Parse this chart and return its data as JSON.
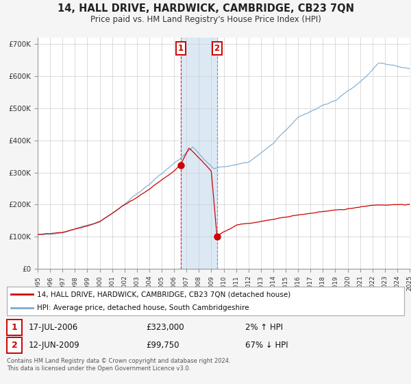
{
  "title": "14, HALL DRIVE, HARDWICK, CAMBRIDGE, CB23 7QN",
  "subtitle": "Price paid vs. HM Land Registry's House Price Index (HPI)",
  "red_legend": "14, HALL DRIVE, HARDWICK, CAMBRIDGE, CB23 7QN (detached house)",
  "blue_legend": "HPI: Average price, detached house, South Cambridgeshire",
  "transaction1_date": "17-JUL-2006",
  "transaction1_price": "£323,000",
  "transaction1_hpi": "2% ↑ HPI",
  "transaction1_year": 2006.54,
  "transaction1_value": 323000,
  "transaction2_date": "12-JUN-2009",
  "transaction2_price": "£99,750",
  "transaction2_hpi": "67% ↓ HPI",
  "transaction2_year": 2009.45,
  "transaction2_value": 99750,
  "shade_start": 2006.54,
  "shade_end": 2009.45,
  "footnote1": "Contains HM Land Registry data © Crown copyright and database right 2024.",
  "footnote2": "This data is licensed under the Open Government Licence v3.0.",
  "background_color": "#f5f5f5",
  "plot_background": "#ffffff",
  "grid_color": "#cccccc",
  "shade_color": "#dce9f5",
  "red_line_color": "#cc0000",
  "blue_line_color": "#7aabcf",
  "ylim_min": 0,
  "ylim_max": 720000,
  "xmin": 1995,
  "xmax": 2025
}
